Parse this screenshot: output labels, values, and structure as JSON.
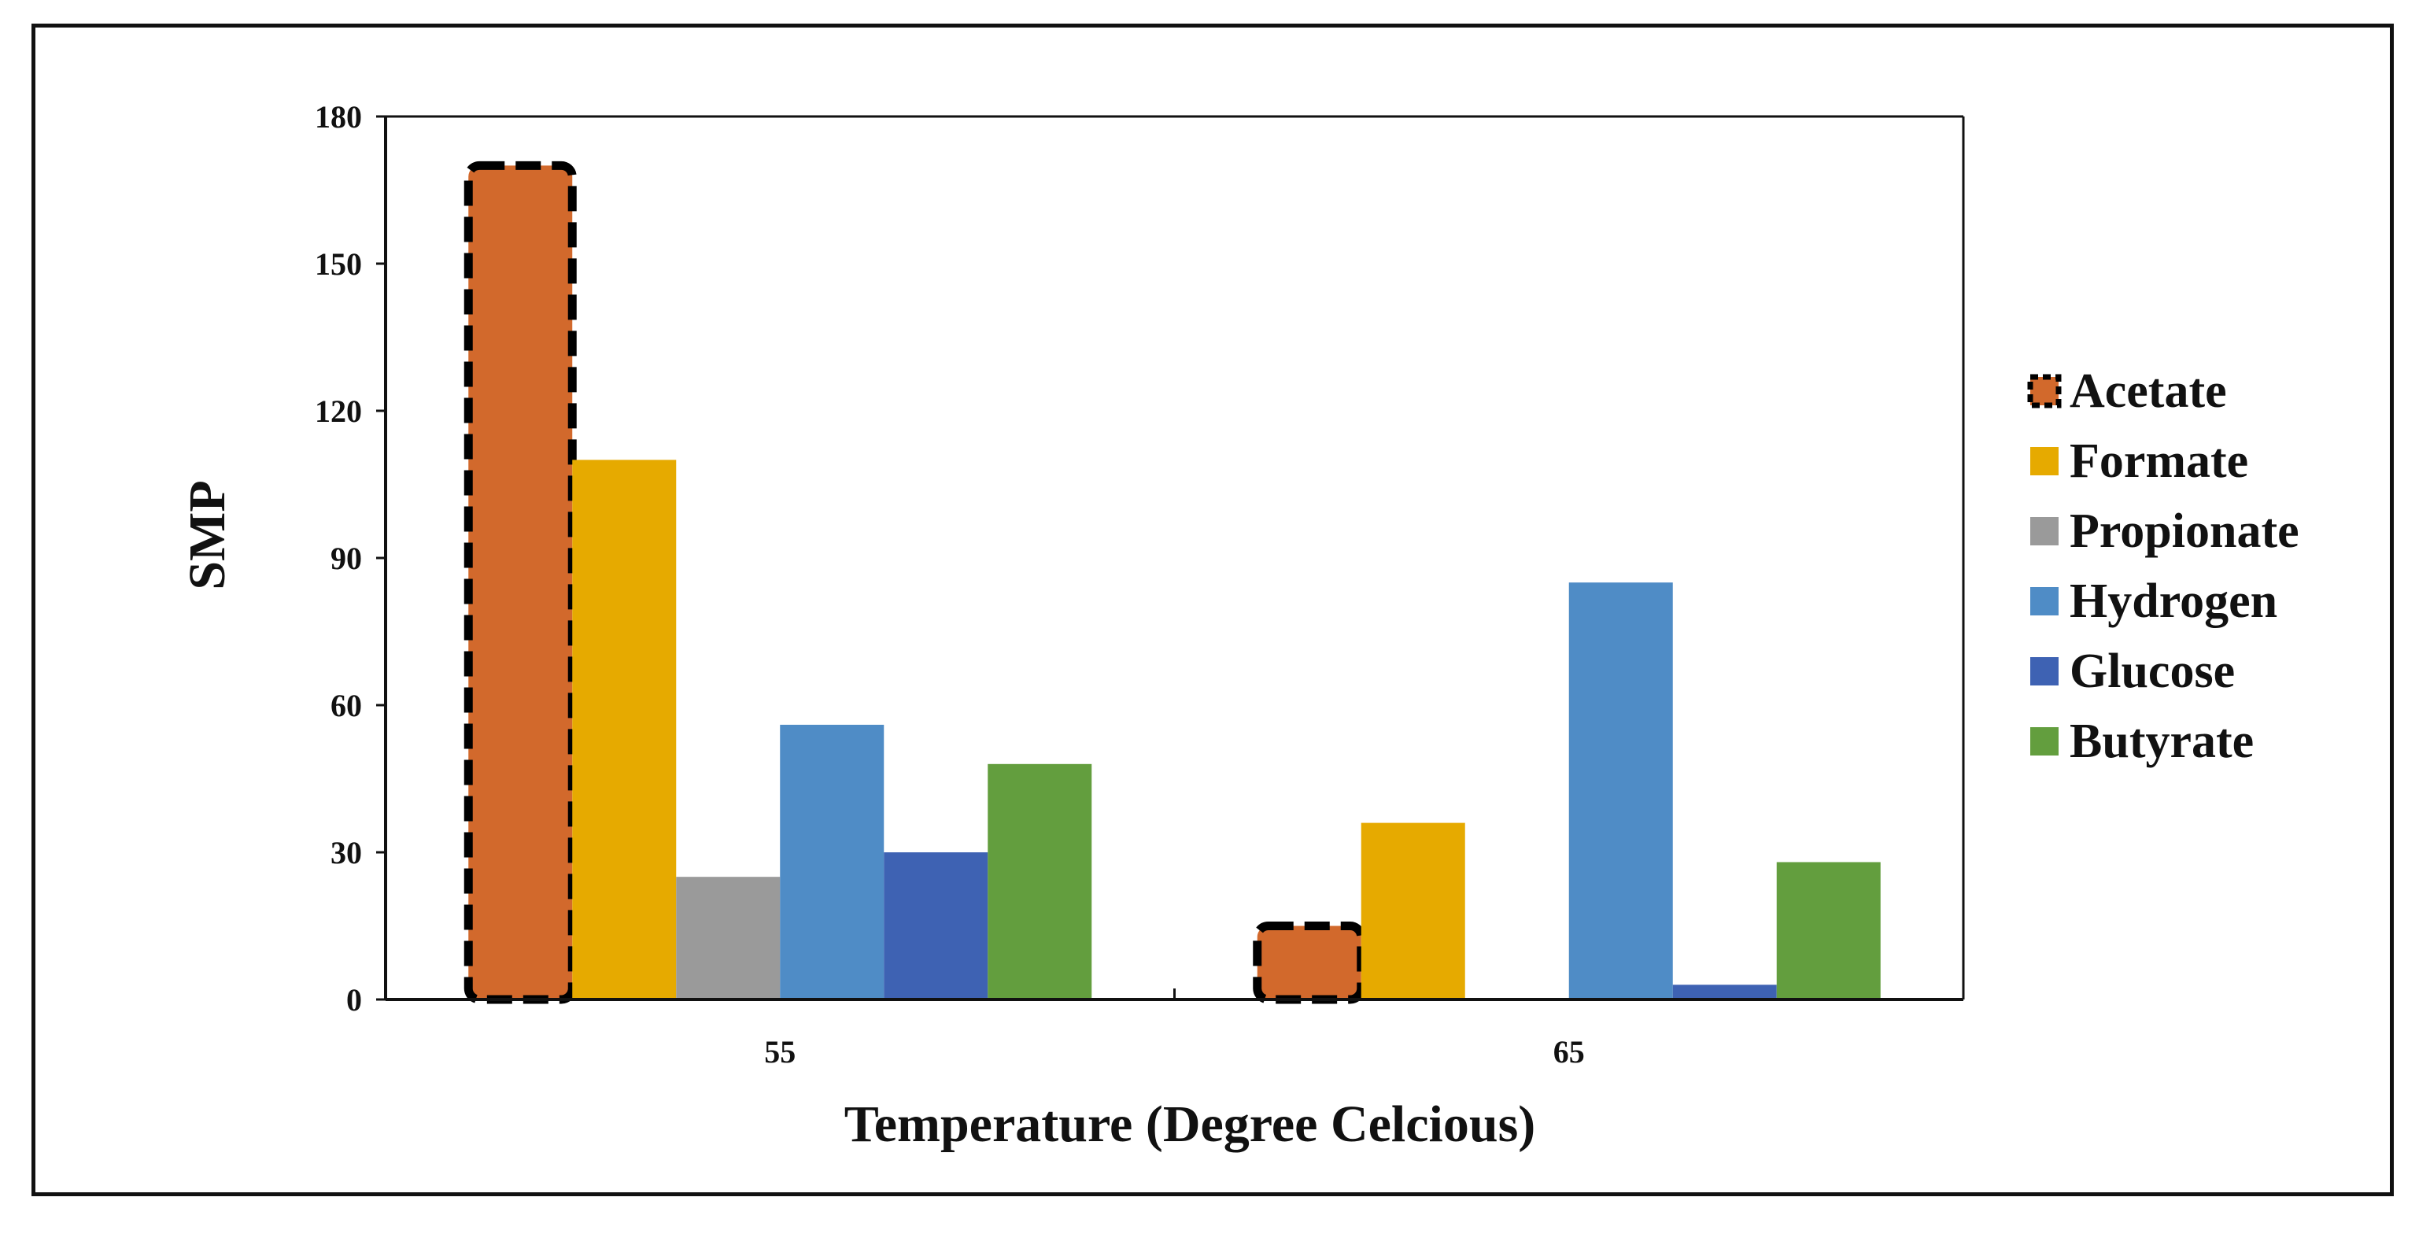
{
  "chart_data": {
    "type": "bar",
    "categories": [
      "55",
      "65"
    ],
    "series": [
      {
        "name": "Acetate",
        "values": [
          170,
          15
        ],
        "color": "#D2692C",
        "dashed_outline": true
      },
      {
        "name": "Formate",
        "values": [
          110,
          36
        ],
        "color": "#E6AA00"
      },
      {
        "name": "Propionate",
        "values": [
          25,
          0
        ],
        "color": "#9A9A9A"
      },
      {
        "name": "Hydrogen",
        "values": [
          56,
          85
        ],
        "color": "#4F8CC6"
      },
      {
        "name": "Glucose",
        "values": [
          30,
          3
        ],
        "color": "#3E62B3"
      },
      {
        "name": "Butyrate",
        "values": [
          48,
          28
        ],
        "color": "#639E3E"
      }
    ],
    "title": "",
    "xlabel": "Temperature (Degree Celcious)",
    "ylabel": "SMP",
    "ylim": [
      0,
      180
    ],
    "yticks": [
      0,
      30,
      60,
      90,
      120,
      150,
      180
    ],
    "grid": false,
    "legend_position": "right"
  }
}
